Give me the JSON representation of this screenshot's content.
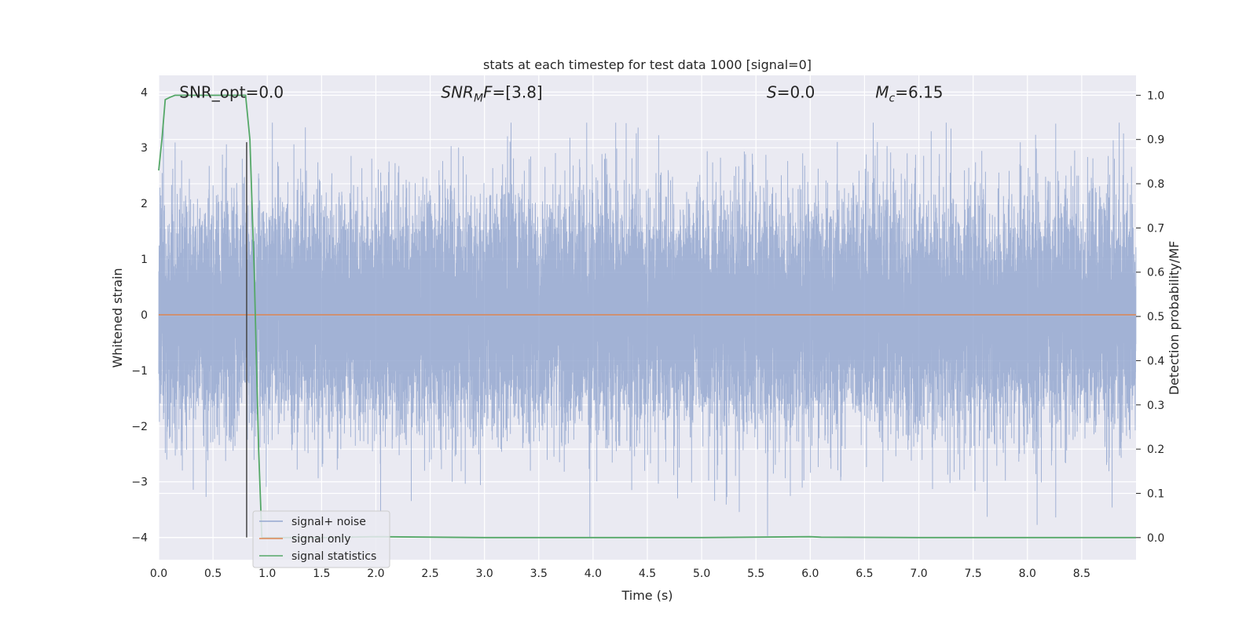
{
  "chart_data": {
    "type": "line",
    "title": "stats at each timestep for test data 1000 [signal=0]",
    "xlabel": "Time (s)",
    "ylabel": "Whitened strain",
    "y2label": "Detection probability/MF",
    "xlim": [
      0.0,
      9.0
    ],
    "ylim": [
      -4.4,
      4.3
    ],
    "y2lim": [
      -0.05,
      1.045
    ],
    "xticks": [
      0.0,
      0.5,
      1.0,
      1.5,
      2.0,
      2.5,
      3.0,
      3.5,
      4.0,
      4.5,
      5.0,
      5.5,
      6.0,
      6.5,
      7.0,
      7.5,
      8.0,
      8.5
    ],
    "yticks": [
      -4,
      -3,
      -2,
      -1,
      0,
      1,
      2,
      3,
      4
    ],
    "y2ticks": [
      0.0,
      0.1,
      0.2,
      0.3,
      0.4,
      0.5,
      0.6,
      0.7,
      0.8,
      0.9,
      1.0
    ],
    "grid": true,
    "legend_placement": "bottom-left",
    "annotations": [
      {
        "x": 0.19,
        "y": 4.0,
        "parts": [
          {
            "t": "SNR_opt=0.0",
            "style": "normal"
          }
        ]
      },
      {
        "x": 2.6,
        "y": 4.0,
        "parts": [
          {
            "t": "SNR",
            "style": "italic"
          },
          {
            "t": "M",
            "style": "italic-sub"
          },
          {
            "t": "F",
            "style": "italic"
          },
          {
            "t": "=[3.8]",
            "style": "normal"
          }
        ]
      },
      {
        "x": 5.6,
        "y": 4.0,
        "parts": [
          {
            "t": "S",
            "style": "italic"
          },
          {
            "t": "=0.0",
            "style": "normal"
          }
        ]
      },
      {
        "x": 6.6,
        "y": 4.0,
        "parts": [
          {
            "t": "M",
            "style": "italic"
          },
          {
            "t": "c",
            "style": "italic-sub"
          },
          {
            "t": "=6.15",
            "style": "normal"
          }
        ]
      }
    ],
    "marker_line": {
      "x": 0.81,
      "y_range": [
        -4.0,
        3.1
      ]
    },
    "series": [
      {
        "name": "signal+ noise",
        "axis": "left",
        "color": "#95a8d0",
        "sample_rate_hz": 2048,
        "duration_s": 9.0,
        "envelope": {
          "typical_abs": 1.5,
          "peak_max": 3.45,
          "peak_min": -4.0
        }
      },
      {
        "name": "signal only",
        "axis": "left",
        "color": "#dd8452",
        "x": [
          0.0,
          9.0
        ],
        "y": [
          0.0,
          0.0
        ]
      },
      {
        "name": "signal statistics",
        "axis": "right",
        "color": "#55a868",
        "x": [
          0.0,
          0.03,
          0.06,
          0.1,
          0.15,
          0.3,
          0.5,
          0.7,
          0.8,
          0.84,
          0.88,
          0.92,
          0.95,
          1.0,
          1.5,
          2.0,
          3.0,
          4.0,
          5.0,
          6.0,
          6.1,
          7.0,
          8.0,
          9.0
        ],
        "y": [
          0.83,
          0.9,
          0.99,
          0.995,
          1.0,
          1.0,
          1.0,
          1.0,
          1.0,
          0.9,
          0.6,
          0.2,
          0.0,
          0.0,
          0.0,
          0.002,
          0.0,
          0.0,
          0.0,
          0.002,
          0.001,
          0.0,
          0.0,
          0.0
        ]
      }
    ]
  }
}
